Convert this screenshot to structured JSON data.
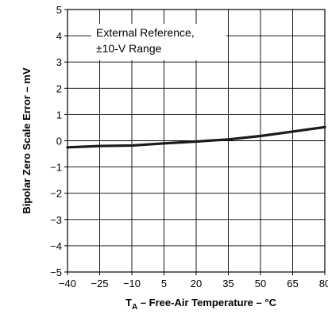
{
  "chart_data": {
    "type": "line",
    "title": "",
    "xlabel": {
      "prefix": "T",
      "subscript": "A",
      "suffix": " – Free-Air Temperature – °C"
    },
    "ylabel": "Bipolar Zero Scale Error – mV",
    "xlim": [
      -40,
      80
    ],
    "ylim": [
      -5,
      5
    ],
    "grid": true,
    "xticks": [
      -40,
      -25,
      -10,
      5,
      20,
      35,
      50,
      65,
      80
    ],
    "xtick_labels": [
      "−40",
      "−25",
      "−10",
      "5",
      "20",
      "35",
      "50",
      "65",
      "80"
    ],
    "yticks": [
      5,
      4,
      3,
      2,
      1,
      0,
      -1,
      -2,
      -3,
      -4,
      -5
    ],
    "ytick_labels": [
      "5",
      "4",
      "3",
      "2",
      "1",
      "0",
      "−1",
      "−2",
      "−3",
      "−4",
      "−5"
    ],
    "annotation": [
      "External Reference,",
      "±10-V Range"
    ],
    "series": [
      {
        "color": "#1a1a1a",
        "x": [
          -40,
          -25,
          -10,
          5,
          20,
          35,
          50,
          65,
          80
        ],
        "y": [
          -0.25,
          -0.2,
          -0.18,
          -0.1,
          -0.03,
          0.05,
          0.18,
          0.35,
          0.52
        ]
      }
    ]
  }
}
